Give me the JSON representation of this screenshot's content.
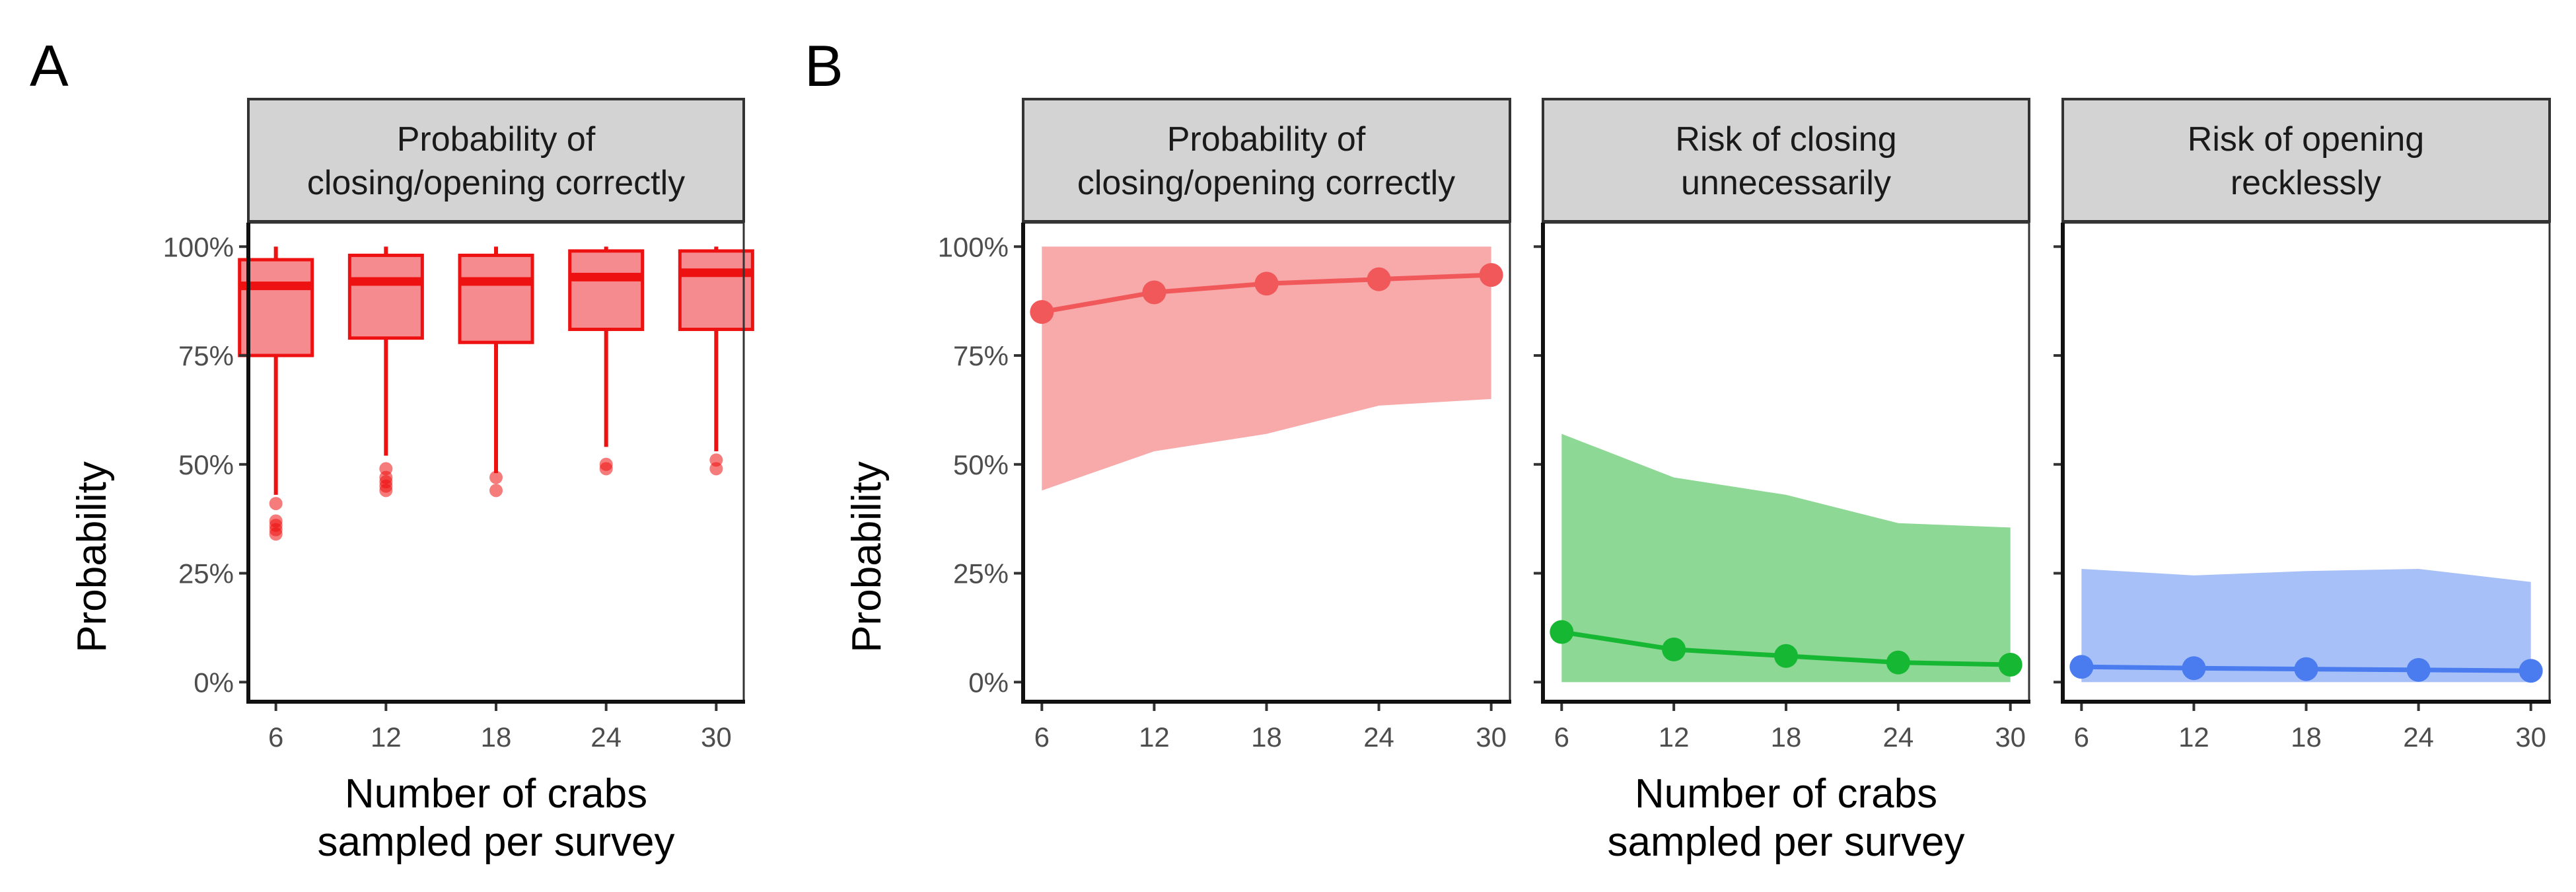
{
  "figure": {
    "panel_labels": [
      "A",
      "B"
    ],
    "y_axis_title": "Probability",
    "x_axis_title_line1": "Number of crabs",
    "x_axis_title_line2": "sampled per survey",
    "y_ticks": [
      0,
      25,
      50,
      75,
      100
    ],
    "y_tick_labels": [
      "0%",
      "25%",
      "50%",
      "75%",
      "100%"
    ],
    "x_ticks": [
      6,
      12,
      18,
      24,
      30
    ],
    "colors": {
      "strip_background": "#d3d3d3",
      "box_red": "#ee1111",
      "box_fill": "#f58a8f",
      "correct": "#f0585a",
      "correct_band": "#f8a9aa",
      "unnecessary": "#16b833",
      "unnecessary_band": "#8cd894",
      "reckless": "#4a7cf0",
      "reckless_band": "#a7c0f8"
    }
  },
  "chart_data": [
    {
      "id": "A",
      "type": "box",
      "panel_label": "A",
      "strip_line1": "Probability of",
      "strip_line2": "closing/opening correctly",
      "xlabel": "Number of crabs sampled per survey",
      "ylabel": "Probability",
      "ylim": [
        0,
        100
      ],
      "unit": "%",
      "categories": [
        6,
        12,
        18,
        24,
        30
      ],
      "boxes": [
        {
          "x": 6,
          "q1": 75,
          "median": 91,
          "q3": 97,
          "whisker_low": 43,
          "whisker_high": 100,
          "outliers": [
            41,
            37,
            36,
            35,
            34
          ]
        },
        {
          "x": 12,
          "q1": 79,
          "median": 92,
          "q3": 98,
          "whisker_low": 52,
          "whisker_high": 100,
          "outliers": [
            49,
            47,
            46,
            45,
            44
          ]
        },
        {
          "x": 18,
          "q1": 78,
          "median": 92,
          "q3": 98,
          "whisker_low": 48,
          "whisker_high": 100,
          "outliers": [
            47,
            44
          ]
        },
        {
          "x": 24,
          "q1": 81,
          "median": 93,
          "q3": 99,
          "whisker_low": 54,
          "whisker_high": 100,
          "outliers": [
            50,
            49
          ]
        },
        {
          "x": 30,
          "q1": 81,
          "median": 94,
          "q3": 99,
          "whisker_low": 53,
          "whisker_high": 100,
          "outliers": [
            51,
            49
          ]
        }
      ]
    },
    {
      "id": "B1",
      "type": "line",
      "panel_label": "B",
      "strip_line1": "Probability of",
      "strip_line2": "closing/opening correctly",
      "ylabel": "Probability",
      "ylim": [
        0,
        100
      ],
      "unit": "%",
      "x": [
        6,
        12,
        18,
        24,
        30
      ],
      "y": [
        85,
        89.5,
        91.5,
        92.5,
        93.5
      ],
      "band_low": [
        44,
        53,
        57,
        63.5,
        65
      ],
      "band_high": [
        100,
        100,
        100,
        100,
        100
      ]
    },
    {
      "id": "B2",
      "type": "line",
      "strip_line1": "Risk of closing",
      "strip_line2": "unnecessarily",
      "xlabel": "Number of crabs sampled per survey",
      "ylim": [
        0,
        100
      ],
      "unit": "%",
      "x": [
        6,
        12,
        18,
        24,
        30
      ],
      "y": [
        11.5,
        7.5,
        6,
        4.5,
        4
      ],
      "band_low": [
        0,
        0,
        0,
        0,
        0
      ],
      "band_high": [
        57,
        47,
        43,
        36.5,
        35.5
      ]
    },
    {
      "id": "B3",
      "type": "line",
      "strip_line1": "Risk of opening",
      "strip_line2": "recklessly",
      "ylim": [
        0,
        100
      ],
      "unit": "%",
      "x": [
        6,
        12,
        18,
        24,
        30
      ],
      "y": [
        3.5,
        3.2,
        3,
        2.8,
        2.6
      ],
      "band_low": [
        0,
        0,
        0,
        0,
        0
      ],
      "band_high": [
        26,
        24.5,
        25.5,
        26,
        23
      ]
    }
  ]
}
